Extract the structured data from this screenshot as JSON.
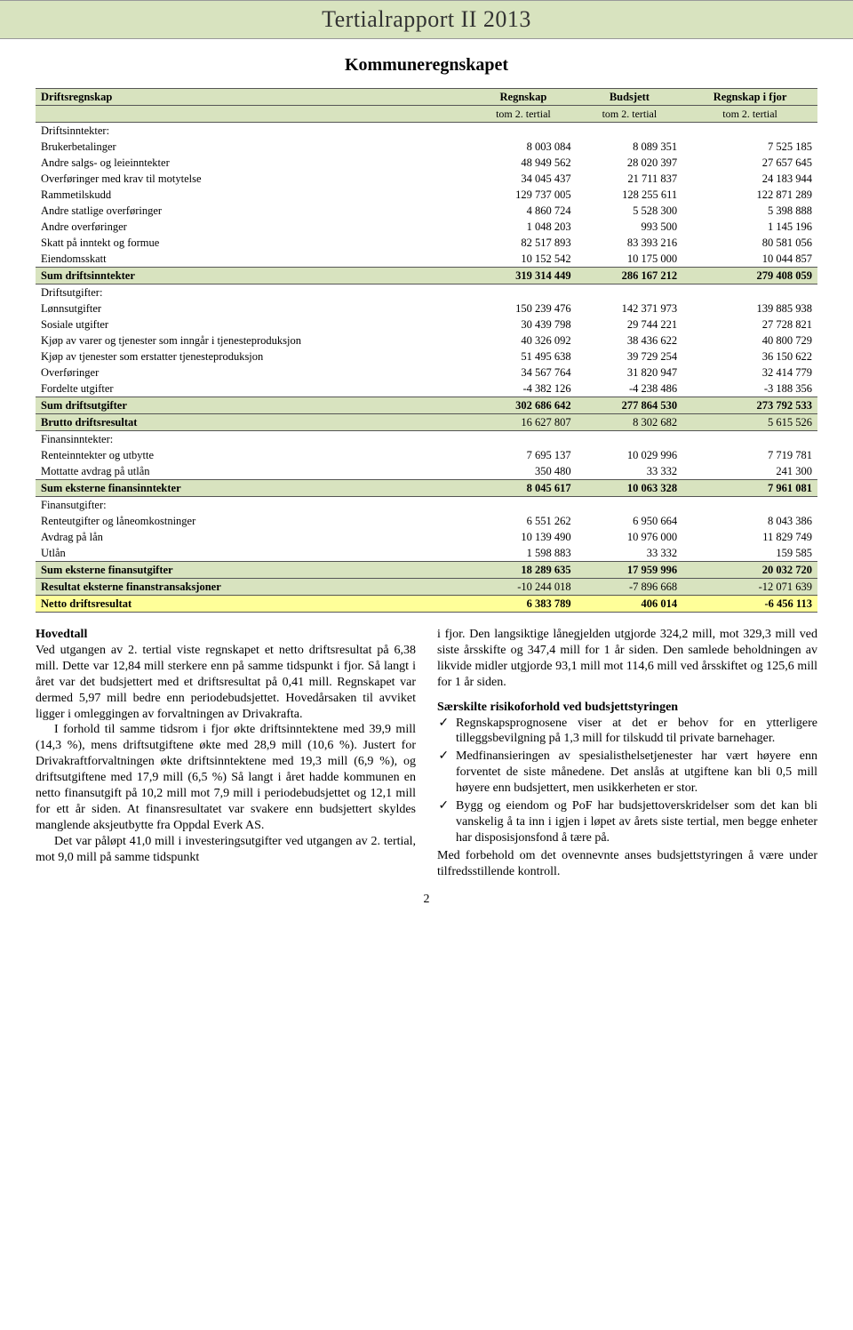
{
  "header": {
    "banner": "Tertialrapport II 2013",
    "title": "Kommuneregnskapet",
    "banner_bg": "#d8e3bf"
  },
  "table": {
    "columns": [
      {
        "line1": "Driftsregnskap",
        "line2": ""
      },
      {
        "line1": "Regnskap",
        "line2": "tom 2. tertial"
      },
      {
        "line1": "Budsjett",
        "line2": "tom 2. tertial"
      },
      {
        "line1": "Regnskap i fjor",
        "line2": "tom 2. tertial"
      }
    ],
    "sum_bg": "#d8e3bf",
    "netto_bg": "#ffff99",
    "rows": [
      {
        "type": "section",
        "label": "Driftsinntekter:"
      },
      {
        "type": "data",
        "label": "Brukerbetalinger",
        "c1": "8 003 084",
        "c2": "8 089 351",
        "c3": "7 525 185"
      },
      {
        "type": "data",
        "label": "Andre salgs- og leieinntekter",
        "c1": "48 949 562",
        "c2": "28 020 397",
        "c3": "27 657 645"
      },
      {
        "type": "data",
        "label": "Overføringer med krav til motytelse",
        "c1": "34 045 437",
        "c2": "21 711 837",
        "c3": "24 183 944"
      },
      {
        "type": "data",
        "label": "Rammetilskudd",
        "c1": "129 737 005",
        "c2": "128 255 611",
        "c3": "122 871 289"
      },
      {
        "type": "data",
        "label": "Andre statlige overføringer",
        "c1": "4 860 724",
        "c2": "5 528 300",
        "c3": "5 398 888"
      },
      {
        "type": "data",
        "label": "Andre overføringer",
        "c1": "1 048 203",
        "c2": "993 500",
        "c3": "1 145 196"
      },
      {
        "type": "data",
        "label": "Skatt på inntekt og formue",
        "c1": "82 517 893",
        "c2": "83 393 216",
        "c3": "80 581 056"
      },
      {
        "type": "data_underline",
        "label": "Eiendomsskatt",
        "c1": "10 152 542",
        "c2": "10 175 000",
        "c3": "10 044 857"
      },
      {
        "type": "sum",
        "label": "Sum driftsinntekter",
        "c1": "319 314 449",
        "c2": "286 167 212",
        "c3": "279 408 059"
      },
      {
        "type": "section",
        "label": "Driftsutgifter:"
      },
      {
        "type": "data",
        "label": "Lønnsutgifter",
        "c1": "150 239 476",
        "c2": "142 371 973",
        "c3": "139 885 938"
      },
      {
        "type": "data",
        "label": "Sosiale utgifter",
        "c1": "30 439 798",
        "c2": "29 744 221",
        "c3": "27 728 821"
      },
      {
        "type": "data",
        "label": "Kjøp av varer og tjenester som inngår i tjenesteproduksjon",
        "c1": "40 326 092",
        "c2": "38 436 622",
        "c3": "40 800 729"
      },
      {
        "type": "data",
        "label": "Kjøp av tjenester som erstatter tjenesteproduksjon",
        "c1": "51 495 638",
        "c2": "39 729 254",
        "c3": "36 150 622"
      },
      {
        "type": "data",
        "label": "Overføringer",
        "c1": "34 567 764",
        "c2": "31 820 947",
        "c3": "32 414 779"
      },
      {
        "type": "data_underline",
        "label": "Fordelte utgifter",
        "c1": "-4 382 126",
        "c2": "-4 238 486",
        "c3": "-3 188 356"
      },
      {
        "type": "sum",
        "label": "Sum driftsutgifter",
        "c1": "302 686 642",
        "c2": "277 864 530",
        "c3": "273 792 533"
      },
      {
        "type": "brutto",
        "label": "Brutto driftsresultat",
        "c1": "16 627 807",
        "c2": "8 302 682",
        "c3": "5 615 526"
      },
      {
        "type": "section",
        "label": "Finansinntekter:"
      },
      {
        "type": "data",
        "label": "Renteinntekter og utbytte",
        "c1": "7 695 137",
        "c2": "10 029 996",
        "c3": "7 719 781"
      },
      {
        "type": "data_underline",
        "label": "Mottatte avdrag på utlån",
        "c1": "350 480",
        "c2": "33 332",
        "c3": "241 300"
      },
      {
        "type": "sum",
        "label": "Sum eksterne finansinntekter",
        "c1": "8 045 617",
        "c2": "10 063 328",
        "c3": "7 961 081"
      },
      {
        "type": "section",
        "label": "Finansutgifter:"
      },
      {
        "type": "data",
        "label": "Renteutgifter og låneomkostninger",
        "c1": "6 551 262",
        "c2": "6 950 664",
        "c3": "8 043 386"
      },
      {
        "type": "data",
        "label": "Avdrag på lån",
        "c1": "10 139 490",
        "c2": "10 976 000",
        "c3": "11 829 749"
      },
      {
        "type": "data_underline",
        "label": "Utlån",
        "c1": "1 598 883",
        "c2": "33 332",
        "c3": "159 585"
      },
      {
        "type": "sum",
        "label": "Sum eksterne finansutgifter",
        "c1": "18 289 635",
        "c2": "17 959 996",
        "c3": "20 032 720"
      },
      {
        "type": "result",
        "label": "Resultat eksterne finanstransaksjoner",
        "c1": "-10 244 018",
        "c2": "-7 896 668",
        "c3": "-12 071 639"
      },
      {
        "type": "netto",
        "label": "Netto driftsresultat",
        "c1": "6 383 789",
        "c2": "406 014",
        "c3": "-6 456 113"
      }
    ]
  },
  "text": {
    "hovedtall_head": "Hovedtall",
    "p1": "Ved utgangen av 2. tertial viste regnskapet et netto driftsresultat på 6,38 mill. Dette var 12,84 mill sterkere enn på samme tidspunkt i fjor. Så langt i året var det budsjettert med et driftsresultat på 0,41 mill. Regnskapet var dermed 5,97 mill bedre enn periodebudsjettet. Hovedårsaken til avviket ligger i omleggingen av forvaltningen av Drivakrafta.",
    "p2": "I forhold til samme tidsrom i fjor økte driftsinntektene med 39,9 mill (14,3 %), mens driftsutgiftene økte med 28,9 mill (10,6 %). Justert for Drivakraftforvaltningen økte driftsinntektene med 19,3 mill (6,9 %), og driftsutgiftene med 17,9 mill (6,5 %) Så langt i året hadde kommunen en netto finansutgift på 10,2 mill mot 7,9 mill i periodebudsjettet og 12,1 mill for ett år siden. At finansresultatet var svakere enn budsjettert skyldes manglende aksjeutbytte fra Oppdal Everk AS.",
    "p3": "Det var påløpt 41,0 mill i investeringsutgifter ved utgangen av 2. tertial, mot 9,0 mill på samme tidspunkt",
    "p4": "i fjor. Den langsiktige lånegjelden utgjorde 324,2 mill, mot 329,3 mill ved siste årsskifte og 347,4 mill for 1 år siden. Den samlede beholdningen av likvide midler utgjorde 93,1 mill mot 114,6 mill ved årsskiftet og 125,6 mill for 1 år siden.",
    "risk_head": "Særskilte risikoforhold ved budsjettstyringen",
    "b1": "Regnskapsprognosene viser at det er behov for en ytterligere tilleggsbevilgning på 1,3 mill for tilskudd til private barnehager.",
    "b2": "Medfinansieringen av spesialisthelsetjenester har vært høyere enn forventet de siste månedene. Det anslås at utgiftene kan bli 0,5 mill høyere enn budsjettert, men usikkerheten er stor.",
    "b3": "Bygg og eiendom og PoF har budsjettoverskridelser som det kan bli vanskelig å ta inn i igjen i løpet av årets siste tertial, men begge enheter har disposisjonsfond å tære på.",
    "closing": "Med forbehold om det ovennevnte anses budsjettstyringen å være under tilfredsstillende kontroll.",
    "page_num": "2"
  }
}
